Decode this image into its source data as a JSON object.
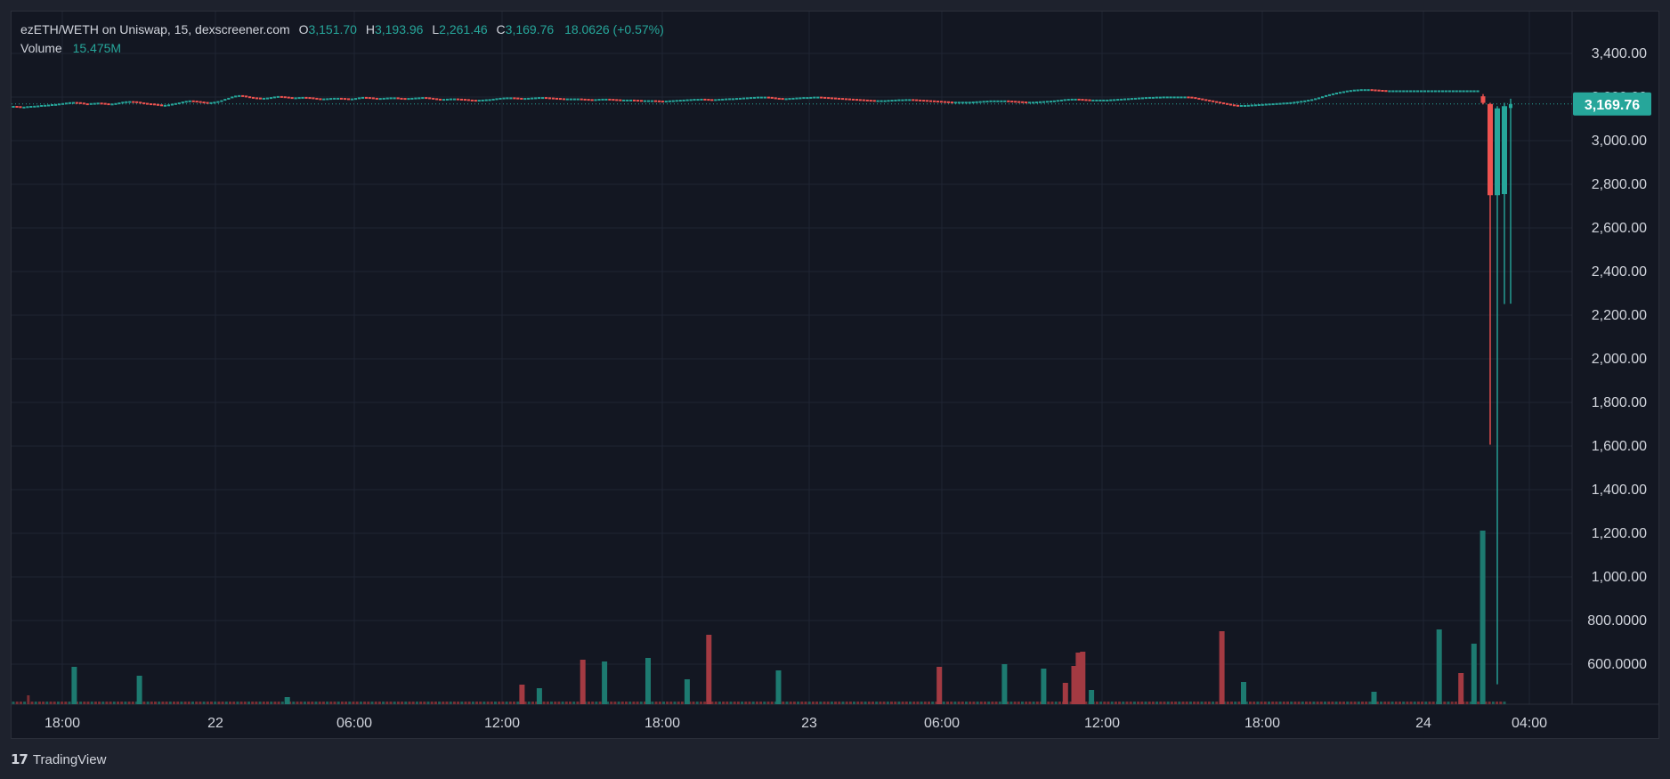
{
  "header": {
    "symbol": "ezETH/WETH on Uniswap, 15, dexscreener.com",
    "open_label": "O",
    "open": "3,151.70",
    "high_label": "H",
    "high": "3,193.96",
    "low_label": "L",
    "low": "2,261.46",
    "close_label": "C",
    "close": "3,169.76",
    "change": "18.0626 (+0.57%)",
    "volume_label": "Volume",
    "volume": "15.475M"
  },
  "last_price_tag": "3,169.76",
  "footer": {
    "logo": "17",
    "brand": "TradingView"
  },
  "colors": {
    "up": "#26a69a",
    "down": "#ef5350",
    "background": "#131722",
    "grid": "#1f2433",
    "text": "#d1d4dc"
  },
  "chart_data": {
    "type": "candlestick",
    "y_axis": {
      "range": [
        3400,
        800
      ],
      "ticks": [
        "3,400.00",
        "3,200.00",
        "3,000.00",
        "2,800.00",
        "2,600.00",
        "2,400.00",
        "2,200.00",
        "2,000.00",
        "1,800.00",
        "1,600.00",
        "1,400.00",
        "1,200.00",
        "1,000.00",
        "800.0000",
        "600.0000"
      ]
    },
    "x_axis": {
      "ticks": [
        "18:00",
        "22",
        "06:00",
        "12:00",
        "18:00",
        "23",
        "06:00",
        "12:00",
        "18:00",
        "24",
        "04:00"
      ]
    },
    "baseline_price": 3170,
    "price_series": [
      3161,
      3160,
      3158,
      3158,
      3160,
      3161,
      3162,
      3163,
      3165,
      3166,
      3167,
      3169,
      3170,
      3172,
      3174,
      3176,
      3178,
      3179,
      3178,
      3176,
      3173,
      3172,
      3174,
      3175,
      3176,
      3175,
      3173,
      3171,
      3172,
      3174,
      3177,
      3180,
      3182,
      3183,
      3182,
      3180,
      3177,
      3175,
      3173,
      3172,
      3170,
      3168,
      3166,
      3166,
      3168,
      3171,
      3174,
      3177,
      3181,
      3184,
      3186,
      3185,
      3183,
      3181,
      3179,
      3178,
      3178,
      3180,
      3183,
      3187,
      3193,
      3198,
      3204,
      3208,
      3210,
      3208,
      3205,
      3202,
      3200,
      3199,
      3198,
      3198,
      3199,
      3201,
      3204,
      3206,
      3205,
      3203,
      3201,
      3200,
      3200,
      3201,
      3202,
      3201,
      3200,
      3198,
      3196,
      3195,
      3195,
      3196,
      3197,
      3198,
      3198,
      3197,
      3196,
      3195,
      3195,
      3197,
      3200,
      3202,
      3201,
      3200,
      3198,
      3197,
      3197,
      3198,
      3199,
      3200,
      3200,
      3198,
      3197,
      3196,
      3197,
      3198,
      3199,
      3200,
      3201,
      3200,
      3198,
      3196,
      3194,
      3193,
      3193,
      3194,
      3195,
      3195,
      3194,
      3193,
      3192,
      3190,
      3189,
      3188,
      3189,
      3190,
      3191,
      3192,
      3194,
      3196,
      3198,
      3199,
      3200,
      3200,
      3199,
      3198,
      3197,
      3197,
      3198,
      3199,
      3200,
      3201,
      3201,
      3200,
      3199,
      3198,
      3197,
      3196,
      3195,
      3195,
      3195,
      3195,
      3195,
      3194,
      3193,
      3192,
      3191,
      3192,
      3193,
      3194,
      3194,
      3193,
      3192,
      3191,
      3190,
      3190,
      3190,
      3190,
      3189,
      3188,
      3187,
      3187,
      3187,
      3187,
      3186,
      3185,
      3184,
      3185,
      3186,
      3187,
      3188,
      3189,
      3190,
      3191,
      3192,
      3193,
      3193,
      3194,
      3193,
      3192,
      3191,
      3192,
      3193,
      3194,
      3195,
      3196,
      3196,
      3197,
      3198,
      3199,
      3200,
      3201,
      3202,
      3203,
      3203,
      3203,
      3202,
      3200,
      3198,
      3197,
      3196,
      3196,
      3197,
      3198,
      3199,
      3200,
      3201,
      3201,
      3202,
      3203,
      3203,
      3202,
      3201,
      3200,
      3199,
      3198,
      3197,
      3196,
      3195,
      3194,
      3193,
      3192,
      3191,
      3190,
      3189,
      3188,
      3187,
      3187,
      3187,
      3187,
      3188,
      3189,
      3190,
      3191,
      3191,
      3192,
      3192,
      3191,
      3190,
      3189,
      3188,
      3187,
      3186,
      3185,
      3184,
      3183,
      3182,
      3181,
      3180,
      3180,
      3180,
      3180,
      3180,
      3180,
      3181,
      3182,
      3183,
      3184,
      3185,
      3186,
      3186,
      3186,
      3186,
      3186,
      3185,
      3184,
      3183,
      3182,
      3181,
      3180,
      3180,
      3180,
      3181,
      3182,
      3183,
      3184,
      3185,
      3186,
      3188,
      3190,
      3192,
      3193,
      3194,
      3194,
      3193,
      3192,
      3191,
      3190,
      3190,
      3190,
      3190,
      3190,
      3190,
      3191,
      3192,
      3193,
      3194,
      3195,
      3196,
      3197,
      3198,
      3199,
      3200,
      3201,
      3202,
      3202,
      3203,
      3203,
      3204,
      3204,
      3204,
      3204,
      3204,
      3204,
      3204,
      3203,
      3201,
      3198,
      3195,
      3192,
      3189,
      3186,
      3183,
      3180,
      3177,
      3174,
      3171,
      3168,
      3166,
      3165,
      3165,
      3165,
      3166,
      3167,
      3168,
      3169,
      3170,
      3171,
      3172,
      3173,
      3174,
      3175,
      3176,
      3177,
      3178,
      3180,
      3182,
      3184,
      3186,
      3189,
      3192,
      3196,
      3200,
      3205,
      3210,
      3214,
      3218,
      3222,
      3225,
      3228,
      3231,
      3233,
      3235,
      3236,
      3237,
      3237,
      3237,
      3236,
      3235,
      3234,
      3233,
      3232,
      3232,
      3232,
      3232,
      3232,
      3232,
      3232,
      3232,
      3232,
      3232,
      3232,
      3232,
      3232,
      3232,
      3232,
      3232,
      3232,
      3232,
      3232,
      3232,
      3232,
      3232,
      3232,
      3232,
      3232,
      3232,
      3232
    ],
    "big_candles": [
      {
        "open": 3205,
        "close": 3175,
        "high": 3215,
        "low": 3168
      },
      {
        "open": 3170,
        "close": 2755,
        "high": 3175,
        "low": 1620
      },
      {
        "open": 2755,
        "close": 3150,
        "high": 3160,
        "low": 530
      },
      {
        "open": 2760,
        "close": 3160,
        "high": 3175,
        "low": 2260
      },
      {
        "open": 3151.7,
        "close": 3169.76,
        "high": 3193.96,
        "low": 2261.46
      }
    ],
    "volume_series": [
      3,
      3,
      3,
      3,
      10,
      3,
      3,
      3,
      3,
      3,
      3,
      3,
      3,
      3,
      3,
      3,
      3,
      3,
      3,
      3,
      3,
      3,
      3,
      3,
      3,
      3,
      3,
      3,
      3,
      3,
      3,
      3,
      3,
      3,
      3,
      3,
      3,
      3,
      3,
      3,
      3,
      3,
      3,
      3,
      3,
      3,
      3,
      3,
      3,
      3,
      3,
      3,
      3,
      3,
      3,
      3,
      3,
      3,
      3,
      3,
      3,
      3,
      3,
      3,
      3,
      3,
      3,
      3,
      3,
      3,
      3,
      3,
      3,
      3,
      3,
      3,
      3,
      3,
      3,
      3,
      3,
      3,
      3,
      3,
      3,
      3,
      3,
      3,
      3,
      3,
      3,
      3,
      3,
      3,
      3,
      3,
      3,
      3,
      3,
      3,
      3,
      3,
      3,
      3,
      3,
      3,
      3,
      3,
      3,
      3,
      3,
      3,
      3,
      3,
      3,
      3,
      3,
      3,
      3,
      3,
      3,
      3,
      3,
      3,
      3,
      3,
      3,
      3,
      3,
      3,
      3,
      3,
      3,
      3,
      3,
      3,
      3,
      3,
      3,
      3,
      3,
      3,
      3,
      3,
      3,
      3,
      3,
      3,
      3,
      3,
      3,
      3,
      3,
      3,
      3,
      3,
      3,
      3,
      3,
      3,
      3,
      3,
      3,
      3,
      3,
      3,
      3,
      3,
      3,
      3,
      3,
      3,
      3,
      3,
      3,
      3,
      3,
      3,
      3,
      3,
      3,
      3,
      3,
      3,
      3,
      3,
      3,
      3,
      3,
      3,
      3,
      3,
      3,
      3,
      3,
      3,
      3,
      3,
      3,
      3,
      3,
      3,
      3,
      3,
      3,
      3,
      3,
      3,
      3,
      3,
      3,
      3,
      3,
      3,
      3,
      3,
      3,
      3,
      3,
      3,
      3,
      3,
      3,
      3,
      3,
      3,
      3,
      3,
      3,
      3,
      3,
      3,
      3,
      3,
      3,
      3,
      3,
      3,
      3,
      3,
      3,
      3,
      3,
      3,
      3,
      3,
      3,
      3,
      3,
      3,
      3,
      3,
      3,
      3,
      3,
      3,
      3,
      3,
      3,
      3,
      3,
      3,
      3,
      3,
      3,
      3,
      3,
      3,
      3,
      3,
      3,
      3,
      3,
      3,
      3,
      3,
      3,
      3,
      3,
      3,
      3,
      3,
      3,
      3,
      3,
      3,
      3,
      3,
      3,
      3,
      3,
      3,
      3,
      3,
      3,
      3,
      3,
      3,
      3,
      3,
      3,
      3,
      3,
      3,
      3,
      3,
      3,
      3,
      3,
      3,
      3,
      3,
      3,
      3,
      3,
      3,
      3,
      3,
      3,
      3,
      3,
      3,
      3,
      3,
      3,
      3,
      3,
      3,
      3,
      3,
      3,
      3,
      3,
      3,
      3,
      3,
      3,
      3,
      3,
      3,
      3,
      3,
      3,
      3,
      3,
      3,
      3,
      3,
      3,
      3,
      3,
      3,
      3,
      3,
      3,
      3,
      3,
      3,
      3,
      3,
      3,
      3,
      3,
      3,
      3,
      3,
      3,
      3,
      3,
      3,
      3,
      3,
      3,
      3,
      3,
      3,
      3,
      3,
      3,
      3,
      3,
      3,
      3,
      3,
      3,
      3,
      3,
      3,
      3,
      3,
      3,
      3,
      3,
      3,
      3,
      3,
      3,
      3,
      3,
      3
    ],
    "volume_spikes": [
      {
        "index": 14,
        "value": 42,
        "dir": "up"
      },
      {
        "index": 29,
        "value": 32,
        "dir": "up"
      },
      {
        "index": 63,
        "value": 8,
        "dir": "up"
      },
      {
        "index": 117,
        "value": 22,
        "dir": "down"
      },
      {
        "index": 121,
        "value": 18,
        "dir": "up"
      },
      {
        "index": 131,
        "value": 50,
        "dir": "down"
      },
      {
        "index": 136,
        "value": 48,
        "dir": "up"
      },
      {
        "index": 146,
        "value": 52,
        "dir": "up"
      },
      {
        "index": 155,
        "value": 28,
        "dir": "up"
      },
      {
        "index": 160,
        "value": 78,
        "dir": "down"
      },
      {
        "index": 176,
        "value": 38,
        "dir": "up"
      },
      {
        "index": 213,
        "value": 42,
        "dir": "down"
      },
      {
        "index": 228,
        "value": 45,
        "dir": "up"
      },
      {
        "index": 237,
        "value": 40,
        "dir": "up"
      },
      {
        "index": 242,
        "value": 24,
        "dir": "down"
      },
      {
        "index": 244,
        "value": 43,
        "dir": "down"
      },
      {
        "index": 245,
        "value": 58,
        "dir": "down"
      },
      {
        "index": 246,
        "value": 59,
        "dir": "down"
      },
      {
        "index": 248,
        "value": 16,
        "dir": "up"
      },
      {
        "index": 278,
        "value": 82,
        "dir": "down"
      },
      {
        "index": 283,
        "value": 25,
        "dir": "up"
      },
      {
        "index": 313,
        "value": 14,
        "dir": "up"
      },
      {
        "index": 328,
        "value": 84,
        "dir": "up"
      },
      {
        "index": 333,
        "value": 35,
        "dir": "down"
      },
      {
        "index": 336,
        "value": 68,
        "dir": "up"
      },
      {
        "index": 338,
        "value": 195,
        "dir": "up"
      }
    ]
  }
}
